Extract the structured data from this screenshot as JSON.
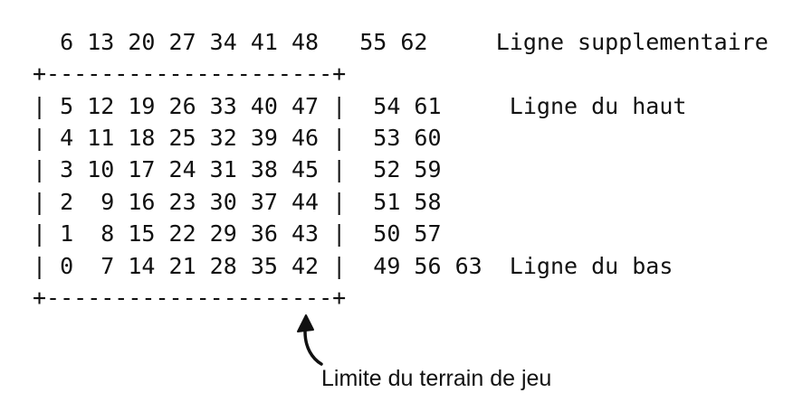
{
  "grid": {
    "lines": [
      "  6 13 20 27 34 41 48   55 62     Ligne supplementaire",
      "+---------------------+",
      "| 5 12 19 26 33 40 47 |  54 61     Ligne du haut",
      "| 4 11 18 25 32 39 46 |  53 60",
      "| 3 10 17 24 31 38 45 |  52 59",
      "| 2  9 16 23 30 37 44 |  51 58",
      "| 1  8 15 22 29 36 43 |  50 57",
      "| 0  7 14 21 28 35 42 |  49 56 63  Ligne du bas",
      "+---------------------+"
    ]
  },
  "annotation": {
    "label": "Limite du terrain de jeu"
  }
}
